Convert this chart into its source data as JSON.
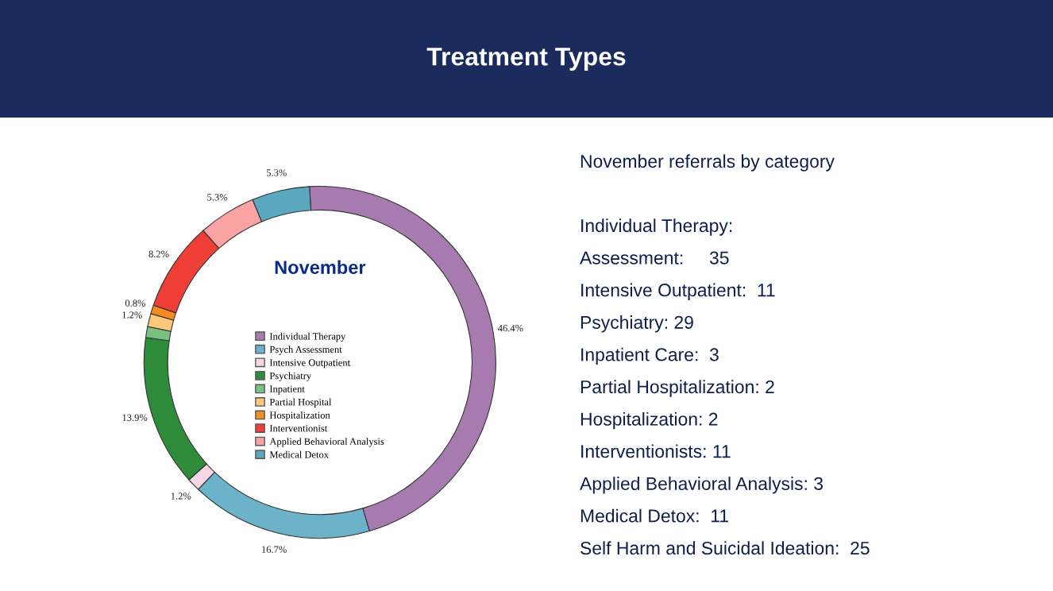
{
  "chart_data": [
    {
      "type": "donut",
      "title": "Treatment Types",
      "subtitle": "November",
      "categories": [
        "Individual Therapy",
        "Psych Assessment",
        "Intensive Outpatient",
        "Psychiatry",
        "Inpatient",
        "Partial Hospital",
        "Hospitalization",
        "Interventionist",
        "Applied Behavioral Analysis",
        "Medical Detox"
      ],
      "values": [
        46.4,
        16.7,
        1.2,
        13.9,
        1.0,
        1.2,
        0.8,
        8.2,
        5.3,
        5.3
      ],
      "value_labels": [
        "46.4%",
        "16.7%",
        "1.2%",
        "13.9%",
        null,
        "1.2%",
        "0.8%",
        "8.2%",
        "5.3%",
        "5.3%"
      ],
      "colors": [
        "#a77bb0",
        "#6cb3c9",
        "#f8d6e4",
        "#2e8b3a",
        "#78c182",
        "#fcc97a",
        "#f68b1f",
        "#ef3e36",
        "#f9a3a3",
        "#5aa9c0"
      ],
      "legend": "center"
    },
    {
      "type": "other",
      "title": "November referrals by category",
      "annotations": [
        "Individual Therapy:",
        "Assessment:     35",
        "Intensive Outpatient:  11",
        "Psychiatry: 29",
        "Inpatient Care:  3",
        "Partial Hospitalization: 2",
        "Hospitalization: 2",
        "Interventionists: 11",
        "Applied Behavioral Analysis: 3",
        "Medical Detox:  11",
        "Self Harm and Suicidal Ideation:  25"
      ]
    }
  ]
}
